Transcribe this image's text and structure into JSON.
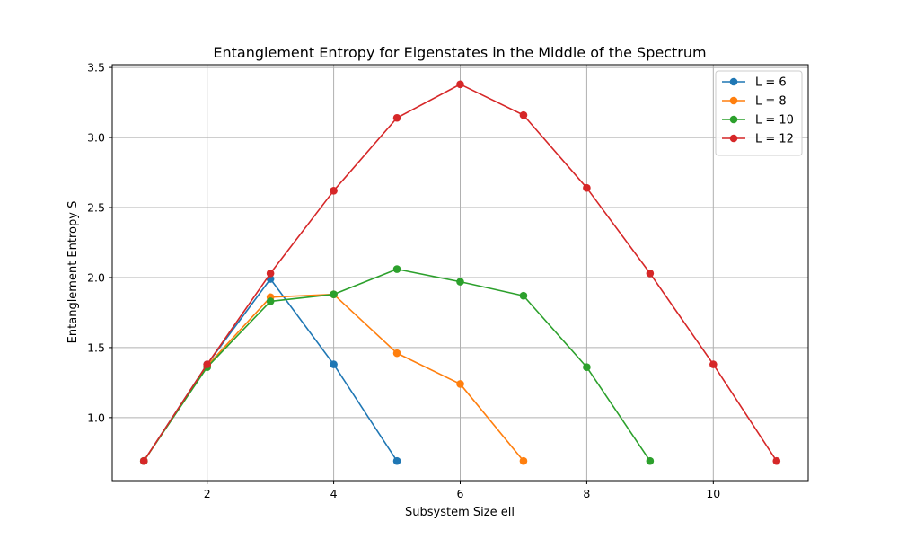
{
  "chart_data": {
    "type": "line",
    "title": "Entanglement Entropy for Eigenstates in the Middle of the Spectrum",
    "xlabel": "Subsystem Size ell",
    "ylabel": "Entanglement Entropy S",
    "xlim": [
      0.5,
      11.5
    ],
    "ylim": [
      0.55,
      3.52
    ],
    "xticks": [
      2,
      4,
      6,
      8,
      10
    ],
    "yticks": [
      1.0,
      1.5,
      2.0,
      2.5,
      3.0,
      3.5
    ],
    "xtick_labels": [
      "2",
      "4",
      "6",
      "8",
      "10"
    ],
    "ytick_labels": [
      "1.0",
      "1.5",
      "2.0",
      "2.5",
      "3.0",
      "3.5"
    ],
    "grid": true,
    "legend_position": "top-right",
    "series": [
      {
        "name": "L = 6",
        "color": "#1f77b4",
        "x": [
          1,
          2,
          3,
          4,
          5
        ],
        "y": [
          0.69,
          1.38,
          1.99,
          1.38,
          0.69
        ]
      },
      {
        "name": "L = 8",
        "color": "#ff7f0e",
        "x": [
          1,
          2,
          3,
          4,
          5,
          6,
          7
        ],
        "y": [
          0.69,
          1.37,
          1.86,
          1.88,
          1.46,
          1.24,
          0.69
        ]
      },
      {
        "name": "L = 10",
        "color": "#2ca02c",
        "x": [
          1,
          2,
          3,
          4,
          5,
          6,
          7,
          8,
          9
        ],
        "y": [
          0.69,
          1.36,
          1.83,
          1.88,
          2.06,
          1.97,
          1.87,
          1.36,
          0.69
        ]
      },
      {
        "name": "L = 12",
        "color": "#d62728",
        "x": [
          1,
          2,
          3,
          4,
          5,
          6,
          7,
          8,
          9,
          10,
          11
        ],
        "y": [
          0.69,
          1.38,
          2.03,
          2.62,
          3.14,
          3.38,
          3.16,
          2.64,
          2.03,
          1.38,
          0.69
        ]
      }
    ]
  }
}
